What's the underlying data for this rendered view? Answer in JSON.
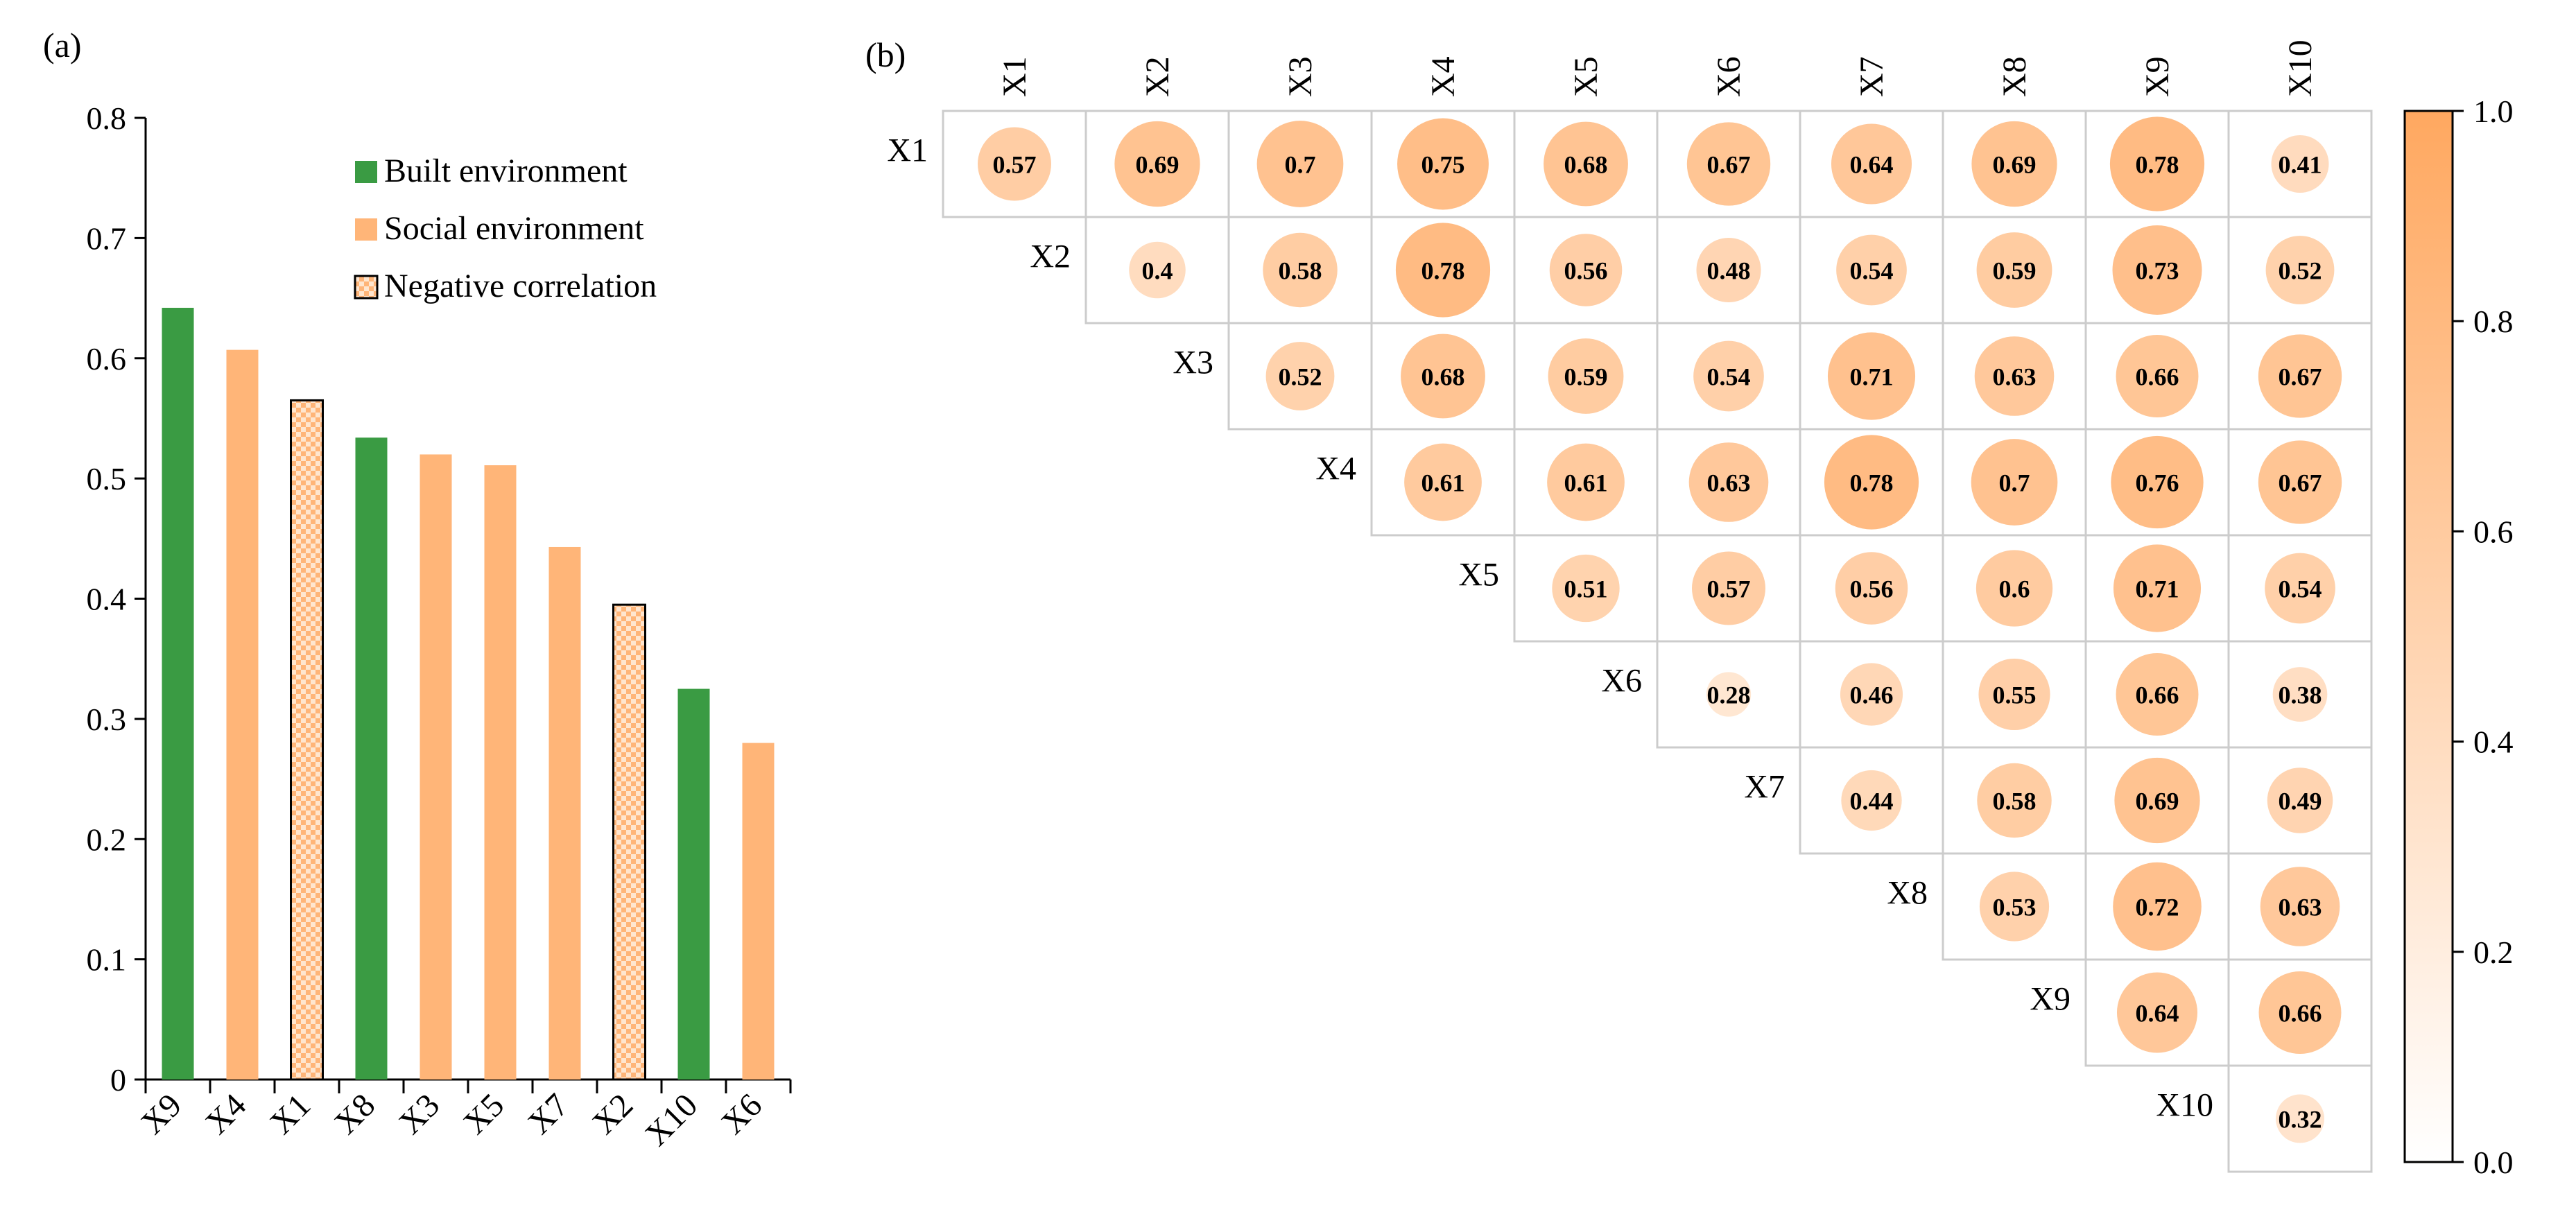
{
  "chart_data": [
    {
      "type": "bar",
      "panel_label": "(a)",
      "categories": [
        "X9",
        "X4",
        "X1",
        "X8",
        "X3",
        "X5",
        "X7",
        "X2",
        "X10",
        "X6"
      ],
      "values": [
        0.642,
        0.607,
        0.565,
        0.534,
        0.52,
        0.511,
        0.443,
        0.395,
        0.325,
        0.28
      ],
      "bar_groups": [
        "built",
        "social",
        "negative",
        "built",
        "social",
        "social",
        "social",
        "negative",
        "built",
        "social"
      ],
      "ylim": [
        0,
        0.8
      ],
      "yticks": [
        0,
        0.1,
        0.2,
        0.3,
        0.4,
        0.5,
        0.6,
        0.7,
        0.8
      ],
      "ytick_labels": [
        "0",
        "0.1",
        "0.2",
        "0.3",
        "0.4",
        "0.5",
        "0.6",
        "0.7",
        "0.8"
      ],
      "legend_position": "top-right",
      "legend": [
        {
          "key": "built",
          "label": "Built environment",
          "color": "#3a9b43"
        },
        {
          "key": "social",
          "label": "Social environment",
          "color": "#ffb578"
        },
        {
          "key": "negative",
          "label": "Negative correlation",
          "color": "#ffb578"
        }
      ]
    },
    {
      "type": "heatmap",
      "panel_label": "(b)",
      "labels": [
        "X1",
        "X2",
        "X3",
        "X4",
        "X5",
        "X6",
        "X7",
        "X8",
        "X9",
        "X10"
      ],
      "matrix": [
        [
          0.57,
          0.69,
          0.7,
          0.75,
          0.68,
          0.67,
          0.64,
          0.69,
          0.78,
          0.41
        ],
        [
          null,
          0.4,
          0.58,
          0.78,
          0.56,
          0.48,
          0.54,
          0.59,
          0.73,
          0.52
        ],
        [
          null,
          null,
          0.52,
          0.68,
          0.59,
          0.54,
          0.71,
          0.63,
          0.66,
          0.67
        ],
        [
          null,
          null,
          null,
          0.61,
          0.61,
          0.63,
          0.78,
          0.7,
          0.76,
          0.67
        ],
        [
          null,
          null,
          null,
          null,
          0.51,
          0.57,
          0.56,
          0.6,
          0.71,
          0.54
        ],
        [
          null,
          null,
          null,
          null,
          null,
          0.28,
          0.46,
          0.55,
          0.66,
          0.38
        ],
        [
          null,
          null,
          null,
          null,
          null,
          null,
          0.44,
          0.58,
          0.69,
          0.49
        ],
        [
          null,
          null,
          null,
          null,
          null,
          null,
          null,
          0.53,
          0.72,
          0.63
        ],
        [
          null,
          null,
          null,
          null,
          null,
          null,
          null,
          null,
          0.64,
          0.66
        ],
        [
          null,
          null,
          null,
          null,
          null,
          null,
          null,
          null,
          null,
          0.32
        ]
      ],
      "colorbar": {
        "min": 0,
        "max": 1,
        "ticks": [
          0,
          0.2,
          0.4,
          0.6,
          0.8,
          1.0
        ],
        "tick_labels": [
          "0.0",
          "0.2",
          "0.4",
          "0.6",
          "0.8",
          "1.0"
        ],
        "color_low": "#ffffff",
        "color_high": "#ffa860"
      }
    }
  ]
}
